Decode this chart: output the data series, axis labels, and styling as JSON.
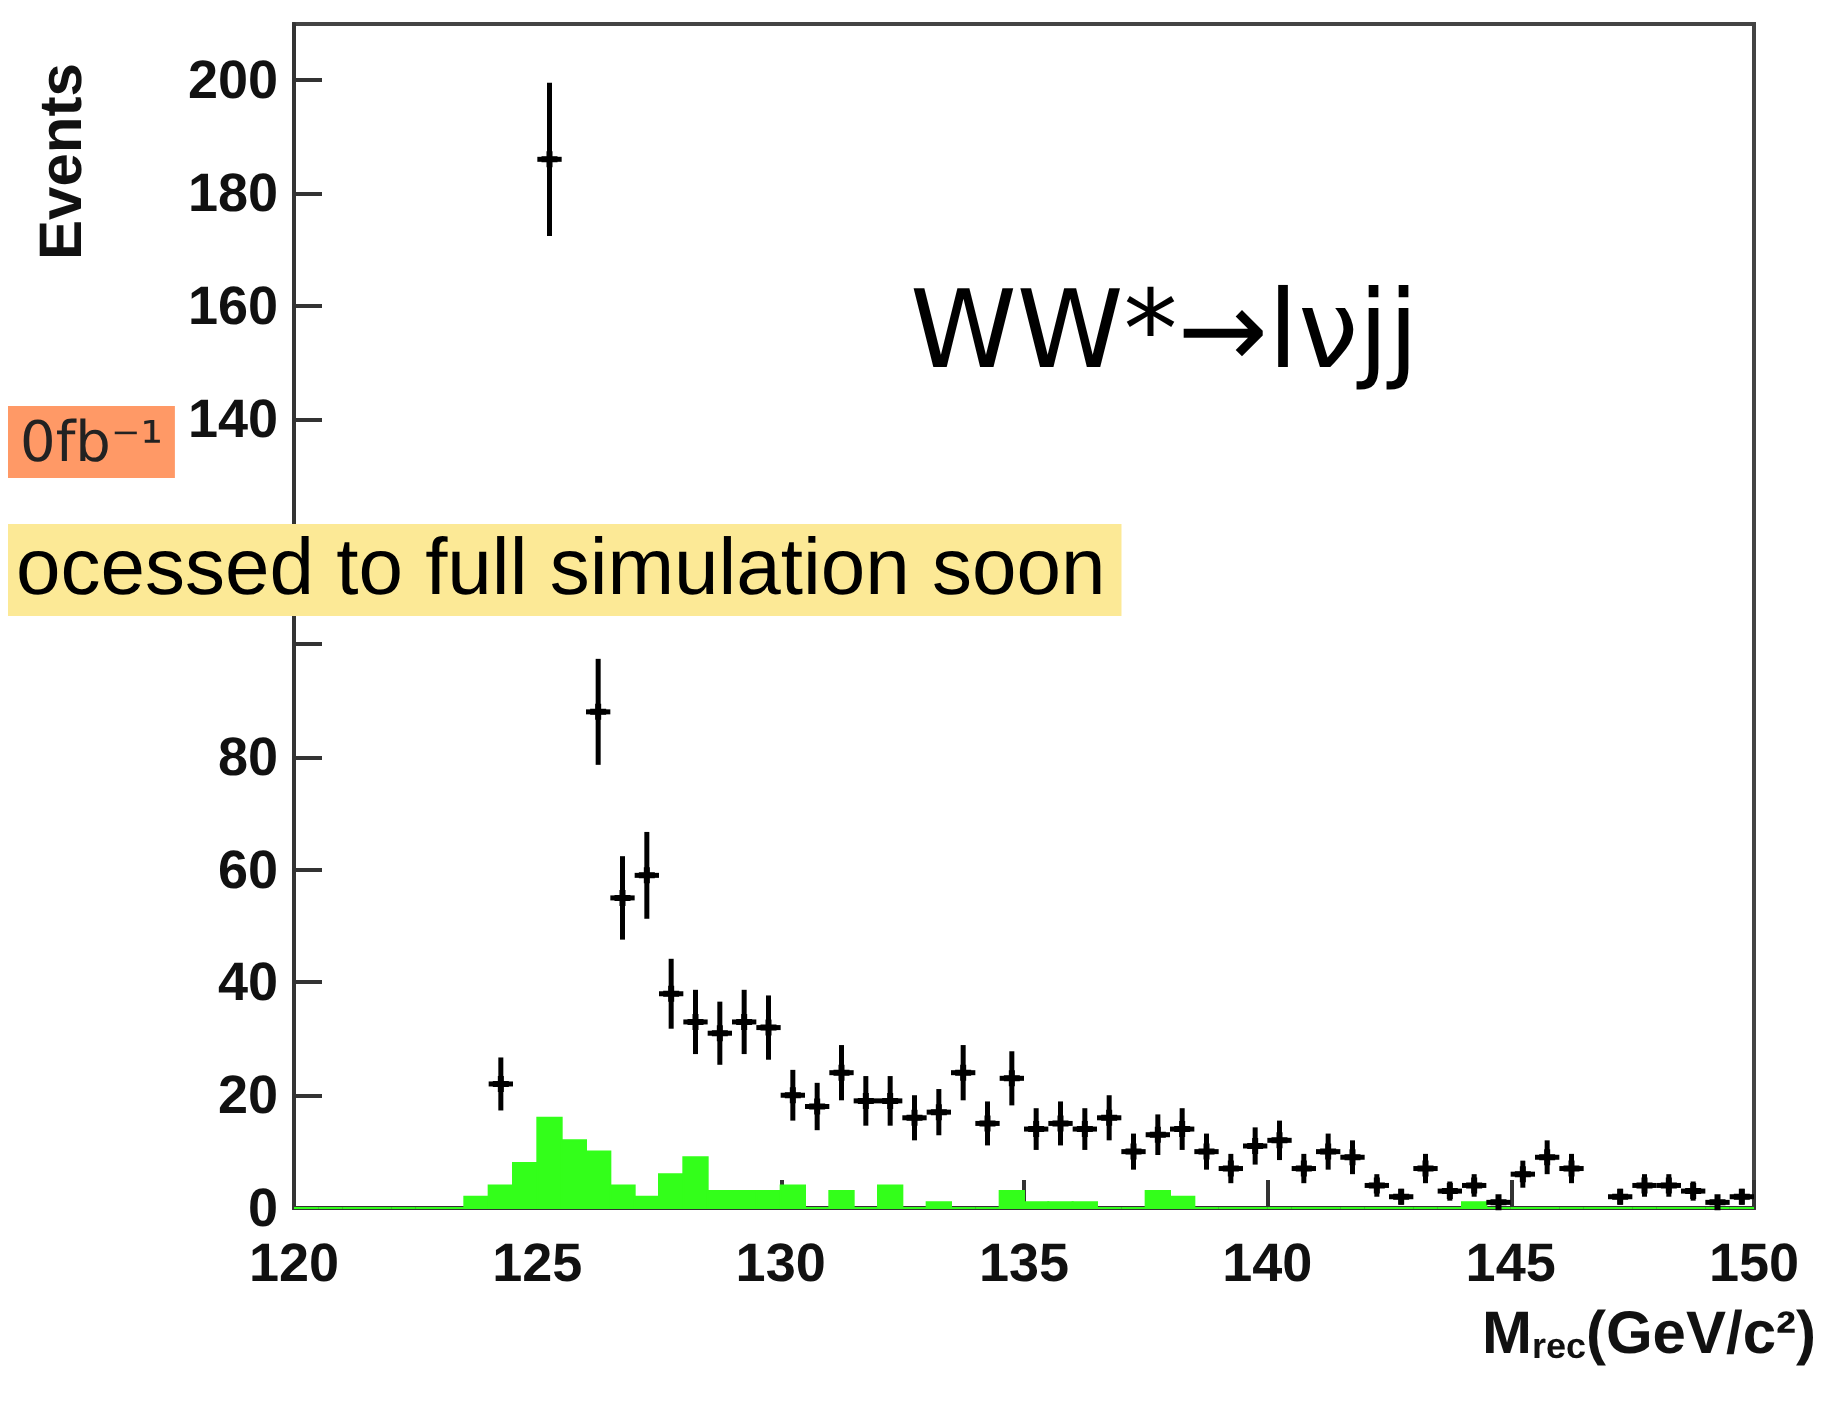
{
  "chart_data": {
    "type": "histogram",
    "xlabel": "M$_{rec}$(GeV/c²)",
    "ylabel": "Events",
    "annotations": [
      "WW*→lνjj",
      "0fb⁻¹",
      "ocessed to full simulation soon"
    ],
    "xlim": [
      120,
      150
    ],
    "xticks": [
      120,
      125,
      130,
      135,
      140,
      145,
      150
    ],
    "ylim": [
      0,
      210
    ],
    "yticks": [
      0,
      20,
      40,
      60,
      80,
      {
        "value": 100,
        "label": null
      },
      {
        "value": 120,
        "label": null
      },
      140,
      160,
      180,
      200
    ],
    "grid": false,
    "marker": "cross",
    "series": [
      {
        "color": "#33ff1a",
        "bins": [
          120,
          120.5,
          121,
          121.5,
          122,
          122.5,
          123,
          123.5,
          124,
          124.5,
          125,
          125.5,
          126,
          126.5,
          127,
          127.5,
          128,
          128.5,
          129,
          129.5,
          130,
          130.5,
          131,
          131.5,
          132,
          132.5,
          133,
          133.5,
          134,
          134.5,
          135,
          135.5,
          136,
          136.5,
          137,
          137.5,
          138,
          138.5,
          139,
          139.5,
          140,
          140.5,
          141,
          141.5,
          142,
          142.5,
          143,
          143.5,
          144,
          144.5,
          145,
          145.5,
          146,
          146.5,
          147,
          147.5,
          148,
          148.5,
          149,
          149.5,
          150
        ],
        "values": [
          0,
          0,
          0,
          0,
          0,
          0,
          0,
          2,
          4,
          8,
          16,
          12,
          10,
          4,
          2,
          6,
          9,
          3,
          3,
          3,
          4,
          0,
          3,
          0,
          4,
          0,
          1,
          0,
          0,
          3,
          1,
          1,
          1,
          0,
          0,
          3,
          2,
          0,
          0,
          0,
          0,
          0,
          0,
          0,
          0,
          0,
          0,
          0,
          1,
          0,
          0,
          0,
          0,
          0,
          0,
          0,
          0,
          0,
          0,
          0
        ]
      },
      {
        "type": "scatter",
        "color": "#000000",
        "x": [
          124.25,
          124.75,
          125.25,
          125.75,
          126.25,
          126.75,
          127.25,
          127.75,
          128.25,
          128.75,
          129.25,
          129.75,
          130.25,
          130.75,
          131.25,
          131.75,
          132.25,
          132.75,
          133.25,
          133.75,
          134.25,
          134.75,
          135.25,
          135.75,
          136.25,
          136.75,
          137.25,
          137.75,
          138.25,
          138.75,
          139.25,
          139.75,
          140.25,
          140.75,
          141.25,
          141.75,
          142.25,
          142.75,
          143.25,
          143.75,
          144.25,
          144.75,
          145.25,
          145.75,
          146.25,
          147.25,
          147.75,
          148.25,
          148.75,
          149.25,
          149.75
        ],
        "values": [
          22,
          null,
          186,
          null,
          88,
          55,
          59,
          38,
          33,
          31,
          33,
          32,
          20,
          18,
          24,
          19,
          19,
          16,
          17,
          24,
          15,
          23,
          14,
          15,
          14,
          16,
          10,
          13,
          14,
          10,
          7,
          11,
          12,
          7,
          10,
          9,
          4,
          2,
          7,
          3,
          4,
          1,
          6,
          9,
          7,
          2,
          4,
          4,
          3,
          1,
          2
        ],
        "errors": [
          4.7,
          null,
          13.6,
          null,
          9.4,
          7.4,
          7.7,
          6.2,
          5.7,
          5.6,
          5.7,
          5.7,
          4.5,
          4.2,
          4.9,
          4.4,
          4.4,
          4,
          4.1,
          4.9,
          3.9,
          4.8,
          3.7,
          3.9,
          3.7,
          4,
          3.2,
          3.6,
          3.7,
          3.2,
          2.6,
          3.3,
          3.5,
          2.6,
          3.2,
          3,
          2,
          1.4,
          2.6,
          1.7,
          2,
          1,
          2.4,
          3,
          2.6,
          1.4,
          2,
          2,
          1.7,
          1,
          1.4
        ],
        "xerrors": [
          0.25,
          null,
          0.25,
          null,
          0.25,
          0.25,
          0.25,
          0.25,
          0.25,
          0.25,
          0.25,
          0.25,
          0.25,
          0.25,
          0.25,
          0.25,
          0.25,
          0.25,
          0.25,
          0.25,
          0.25,
          0.25,
          0.25,
          0.25,
          0.25,
          0.25,
          0.25,
          0.25,
          0.25,
          0.25,
          0.25,
          0.25,
          0.25,
          0.25,
          0.25,
          0.25,
          0.25,
          0.25,
          0.25,
          0.25,
          0.25,
          0.25,
          0.25,
          0.25,
          0.25,
          0.25,
          0.25,
          0.25,
          0.25,
          0.25,
          0.25
        ]
      }
    ]
  }
}
